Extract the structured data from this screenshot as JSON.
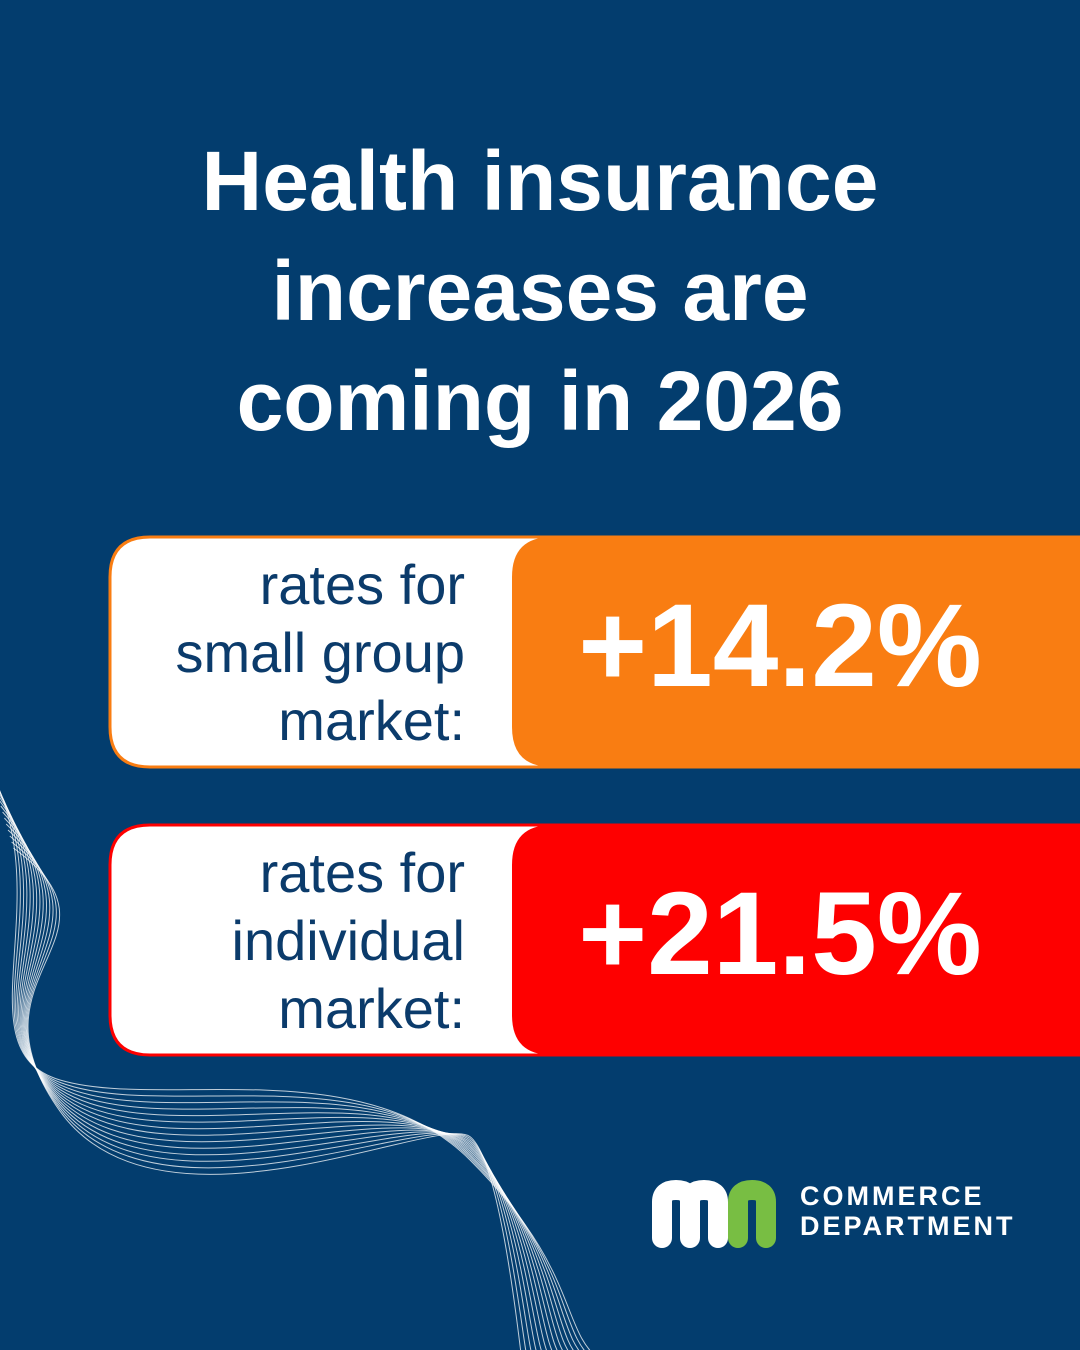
{
  "title": {
    "lines": [
      "Health insurance",
      "increases are",
      "coming in 2026"
    ]
  },
  "cards": [
    {
      "label_lines": [
        "rates for",
        "small group",
        "market:"
      ],
      "value": "+14.2%",
      "color": "#f97d12"
    },
    {
      "label_lines": [
        "rates for",
        "individual",
        "market:"
      ],
      "value": "+21.5%",
      "color": "#fe0000"
    }
  ],
  "logo": {
    "lines": [
      "COMMERCE",
      "DEPARTMENT"
    ]
  }
}
